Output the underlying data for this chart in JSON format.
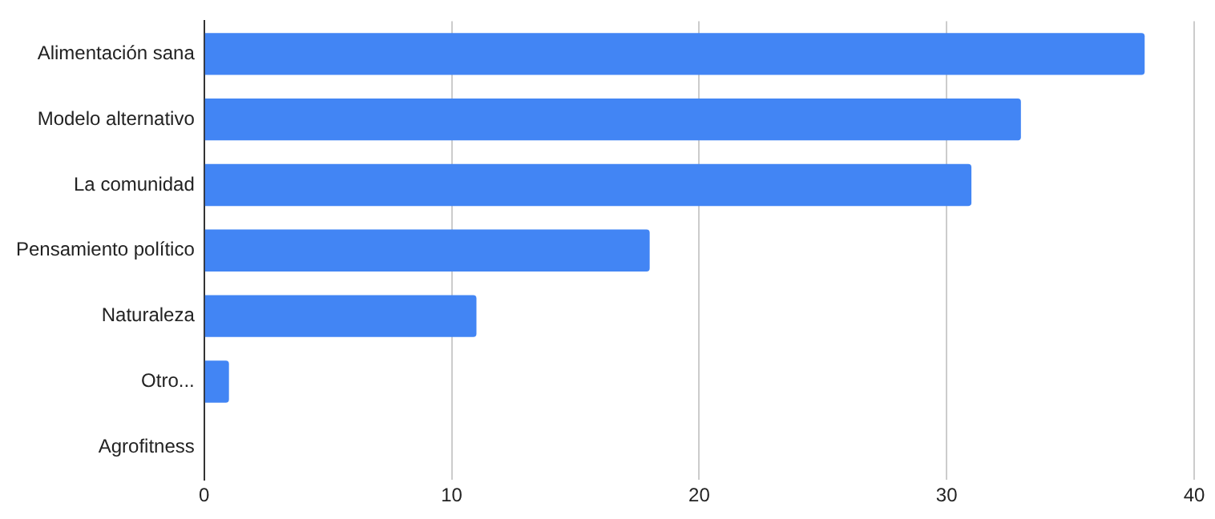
{
  "chart_data": {
    "type": "bar",
    "orientation": "horizontal",
    "categories": [
      "Alimentación sana",
      "Modelo alternativo",
      "La comunidad",
      "Pensamiento político",
      "Naturaleza",
      "Otro...",
      "Agrofitness"
    ],
    "values": [
      38,
      33,
      31,
      18,
      11,
      1,
      0
    ],
    "color": "#4285f4",
    "xlim": [
      0,
      40
    ],
    "xticks": [
      0,
      10,
      20,
      30,
      40
    ],
    "grid": "x",
    "legend": false
  }
}
